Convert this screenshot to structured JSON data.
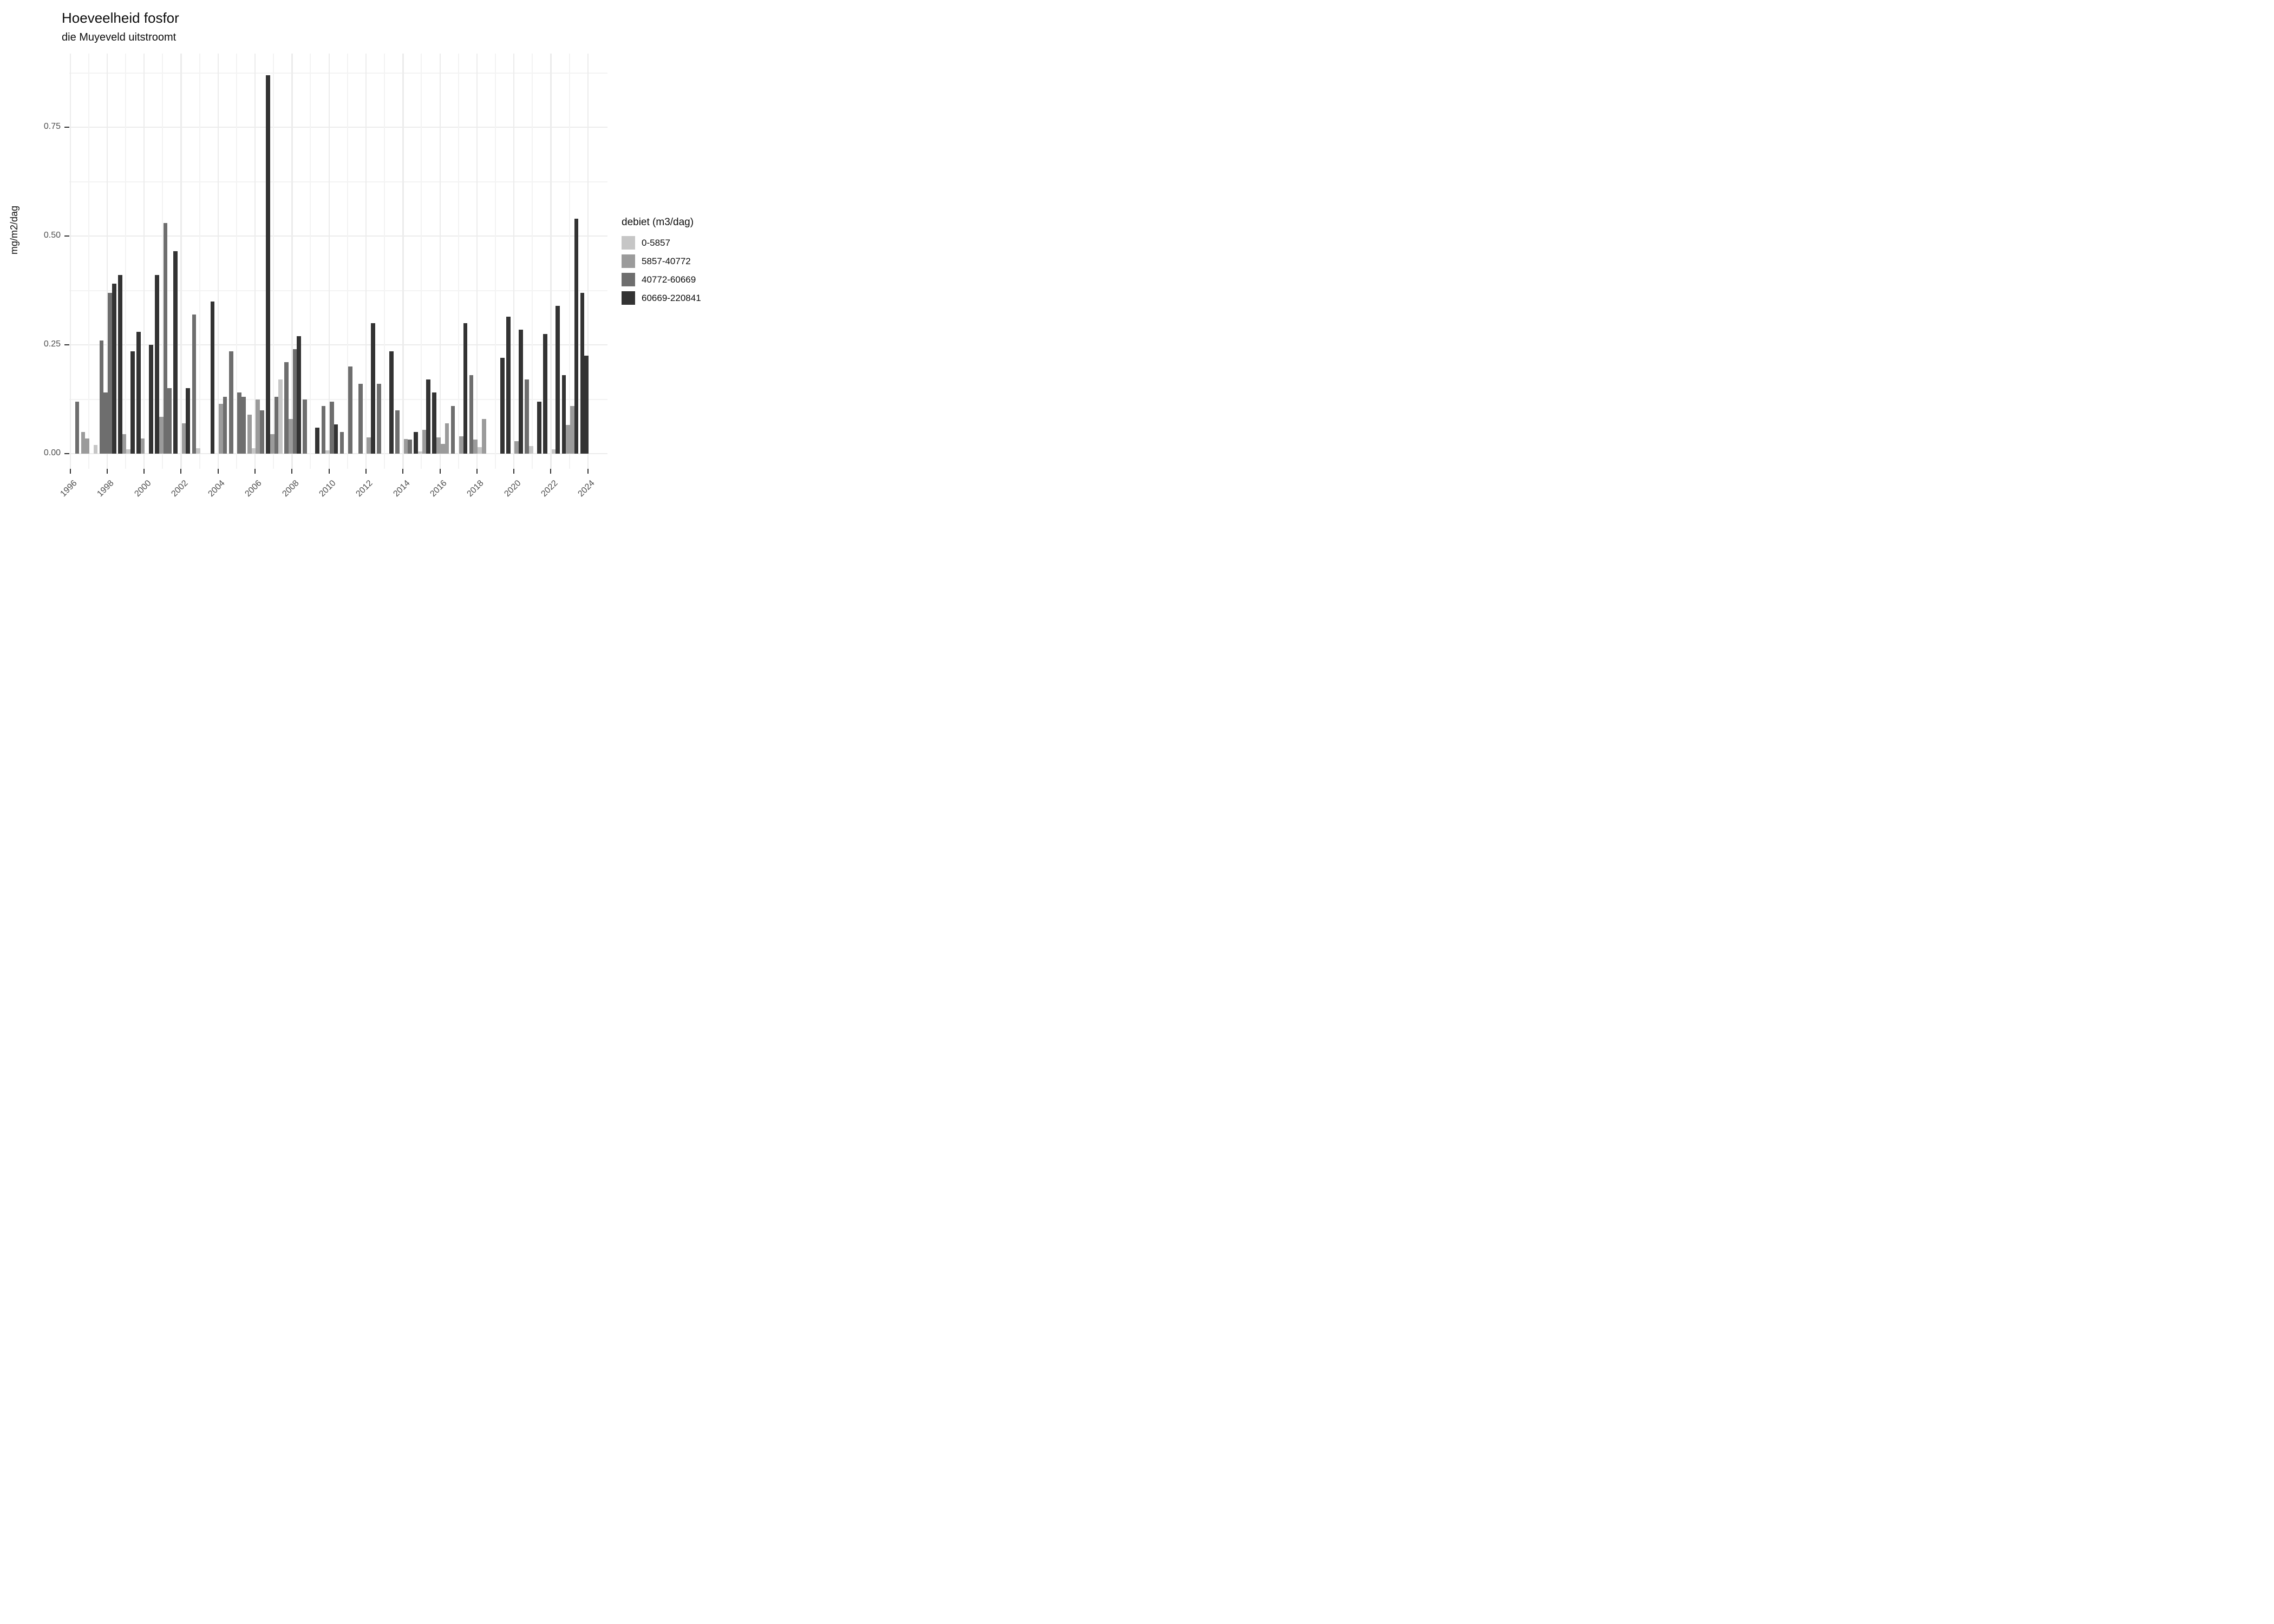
{
  "header": {
    "title": "Hoeveelheid fosfor",
    "subtitle": "die Muyeveld uitstroomt"
  },
  "chart_data": {
    "type": "bar",
    "title": "Hoeveelheid fosfor",
    "subtitle": "die Muyeveld uitstroomt",
    "xlabel": "",
    "ylabel": "mg/m2/dag",
    "ylim": [
      0,
      0.92
    ],
    "grid": "on",
    "legend_position": "right",
    "legend_title": "debiet (m3/dag)",
    "categories": [
      {
        "label": "0-5857",
        "color": "#c6c6c6"
      },
      {
        "label": "5857-40772",
        "color": "#9b9b9b"
      },
      {
        "label": "40772-60669",
        "color": "#6e6e6e"
      },
      {
        "label": "60669-220841",
        "color": "#333333"
      }
    ],
    "x_ticks": [
      1996,
      1998,
      2000,
      2002,
      2004,
      2006,
      2008,
      2010,
      2012,
      2014,
      2016,
      2018,
      2020,
      2022,
      2024
    ],
    "x_range": [
      1996,
      2024
    ],
    "y_ticks": [
      "0.00",
      "0.25",
      "0.50",
      "0.75"
    ],
    "y_tick_values": [
      0,
      0.25,
      0.5,
      0.75
    ],
    "bars_format": [
      "year",
      "quarter",
      "category_index",
      "value_mg_m2_dag"
    ],
    "bars": [
      [
        1996,
        2,
        3,
        0.12
      ],
      [
        1996,
        3,
        2,
        0.05
      ],
      [
        1996,
        4,
        2,
        0.035
      ],
      [
        1997,
        2,
        1,
        0.02
      ],
      [
        1997,
        3,
        3,
        0.26
      ],
      [
        1997,
        4,
        3,
        0.14
      ],
      [
        1998,
        1,
        3,
        0.37
      ],
      [
        1998,
        2,
        4,
        0.39
      ],
      [
        1998,
        3,
        4,
        0.41
      ],
      [
        1998,
        4,
        2,
        0.045
      ],
      [
        1999,
        1,
        1,
        0.01
      ],
      [
        1999,
        2,
        4,
        0.235
      ],
      [
        1999,
        3,
        4,
        0.28
      ],
      [
        1999,
        4,
        2,
        0.035
      ],
      [
        2000,
        2,
        4,
        0.25
      ],
      [
        2000,
        3,
        4,
        0.41
      ],
      [
        2000,
        4,
        2,
        0.085
      ],
      [
        2001,
        1,
        3,
        0.53
      ],
      [
        2001,
        2,
        3,
        0.15
      ],
      [
        2001,
        3,
        4,
        0.465
      ],
      [
        2002,
        1,
        2,
        0.07
      ],
      [
        2002,
        2,
        4,
        0.15
      ],
      [
        2002,
        3,
        3,
        0.32
      ],
      [
        2002,
        4,
        1,
        0.012
      ],
      [
        2003,
        3,
        4,
        0.35
      ],
      [
        2004,
        1,
        2,
        0.115
      ],
      [
        2004,
        2,
        3,
        0.13
      ],
      [
        2004,
        3,
        3,
        0.235
      ],
      [
        2005,
        1,
        3,
        0.14
      ],
      [
        2005,
        2,
        3,
        0.13
      ],
      [
        2005,
        3,
        2,
        0.09
      ],
      [
        2005,
        4,
        1,
        0.012
      ],
      [
        2006,
        1,
        2,
        0.125
      ],
      [
        2006,
        2,
        3,
        0.1
      ],
      [
        2006,
        3,
        4,
        0.87
      ],
      [
        2006,
        4,
        2,
        0.045
      ],
      [
        2007,
        1,
        3,
        0.13
      ],
      [
        2007,
        2,
        1,
        0.17
      ],
      [
        2007,
        3,
        3,
        0.21
      ],
      [
        2007,
        4,
        2,
        0.08
      ],
      [
        2008,
        1,
        3,
        0.24
      ],
      [
        2008,
        2,
        4,
        0.27
      ],
      [
        2008,
        3,
        3,
        0.125
      ],
      [
        2009,
        2,
        4,
        0.06
      ],
      [
        2009,
        3,
        3,
        0.11
      ],
      [
        2009,
        4,
        1,
        0.008
      ],
      [
        2010,
        1,
        3,
        0.12
      ],
      [
        2010,
        2,
        4,
        0.067
      ],
      [
        2010,
        3,
        3,
        0.05
      ],
      [
        2011,
        1,
        3,
        0.2
      ],
      [
        2011,
        3,
        3,
        0.16
      ],
      [
        2012,
        1,
        2,
        0.037
      ],
      [
        2012,
        2,
        4,
        0.3
      ],
      [
        2012,
        3,
        3,
        0.16
      ],
      [
        2013,
        2,
        4,
        0.235
      ],
      [
        2013,
        3,
        3,
        0.1
      ],
      [
        2014,
        1,
        2,
        0.033
      ],
      [
        2014,
        2,
        3,
        0.032
      ],
      [
        2014,
        3,
        4,
        0.05
      ],
      [
        2014,
        4,
        1,
        0.005
      ],
      [
        2015,
        1,
        2,
        0.055
      ],
      [
        2015,
        2,
        4,
        0.17
      ],
      [
        2015,
        3,
        4,
        0.14
      ],
      [
        2015,
        4,
        2,
        0.037
      ],
      [
        2016,
        1,
        2,
        0.023
      ],
      [
        2016,
        2,
        2,
        0.07
      ],
      [
        2016,
        3,
        3,
        0.11
      ],
      [
        2017,
        1,
        2,
        0.04
      ],
      [
        2017,
        2,
        4,
        0.3
      ],
      [
        2017,
        3,
        3,
        0.18
      ],
      [
        2017,
        4,
        2,
        0.032
      ],
      [
        2018,
        1,
        1,
        0.015
      ],
      [
        2018,
        2,
        2,
        0.08
      ],
      [
        2019,
        2,
        4,
        0.22
      ],
      [
        2019,
        3,
        4,
        0.315
      ],
      [
        2020,
        1,
        2,
        0.028
      ],
      [
        2020,
        2,
        4,
        0.285
      ],
      [
        2020,
        3,
        3,
        0.17
      ],
      [
        2020,
        4,
        1,
        0.018
      ],
      [
        2021,
        2,
        4,
        0.12
      ],
      [
        2021,
        3,
        4,
        0.275
      ],
      [
        2022,
        1,
        1,
        0.01
      ],
      [
        2022,
        2,
        4,
        0.34
      ],
      [
        2022,
        3,
        4,
        0.18
      ],
      [
        2022,
        4,
        2,
        0.066
      ],
      [
        2023,
        1,
        2,
        0.11
      ],
      [
        2023,
        2,
        4,
        0.54
      ],
      [
        2023,
        3,
        4,
        0.37
      ],
      [
        2023,
        4,
        4,
        0.225
      ]
    ]
  }
}
